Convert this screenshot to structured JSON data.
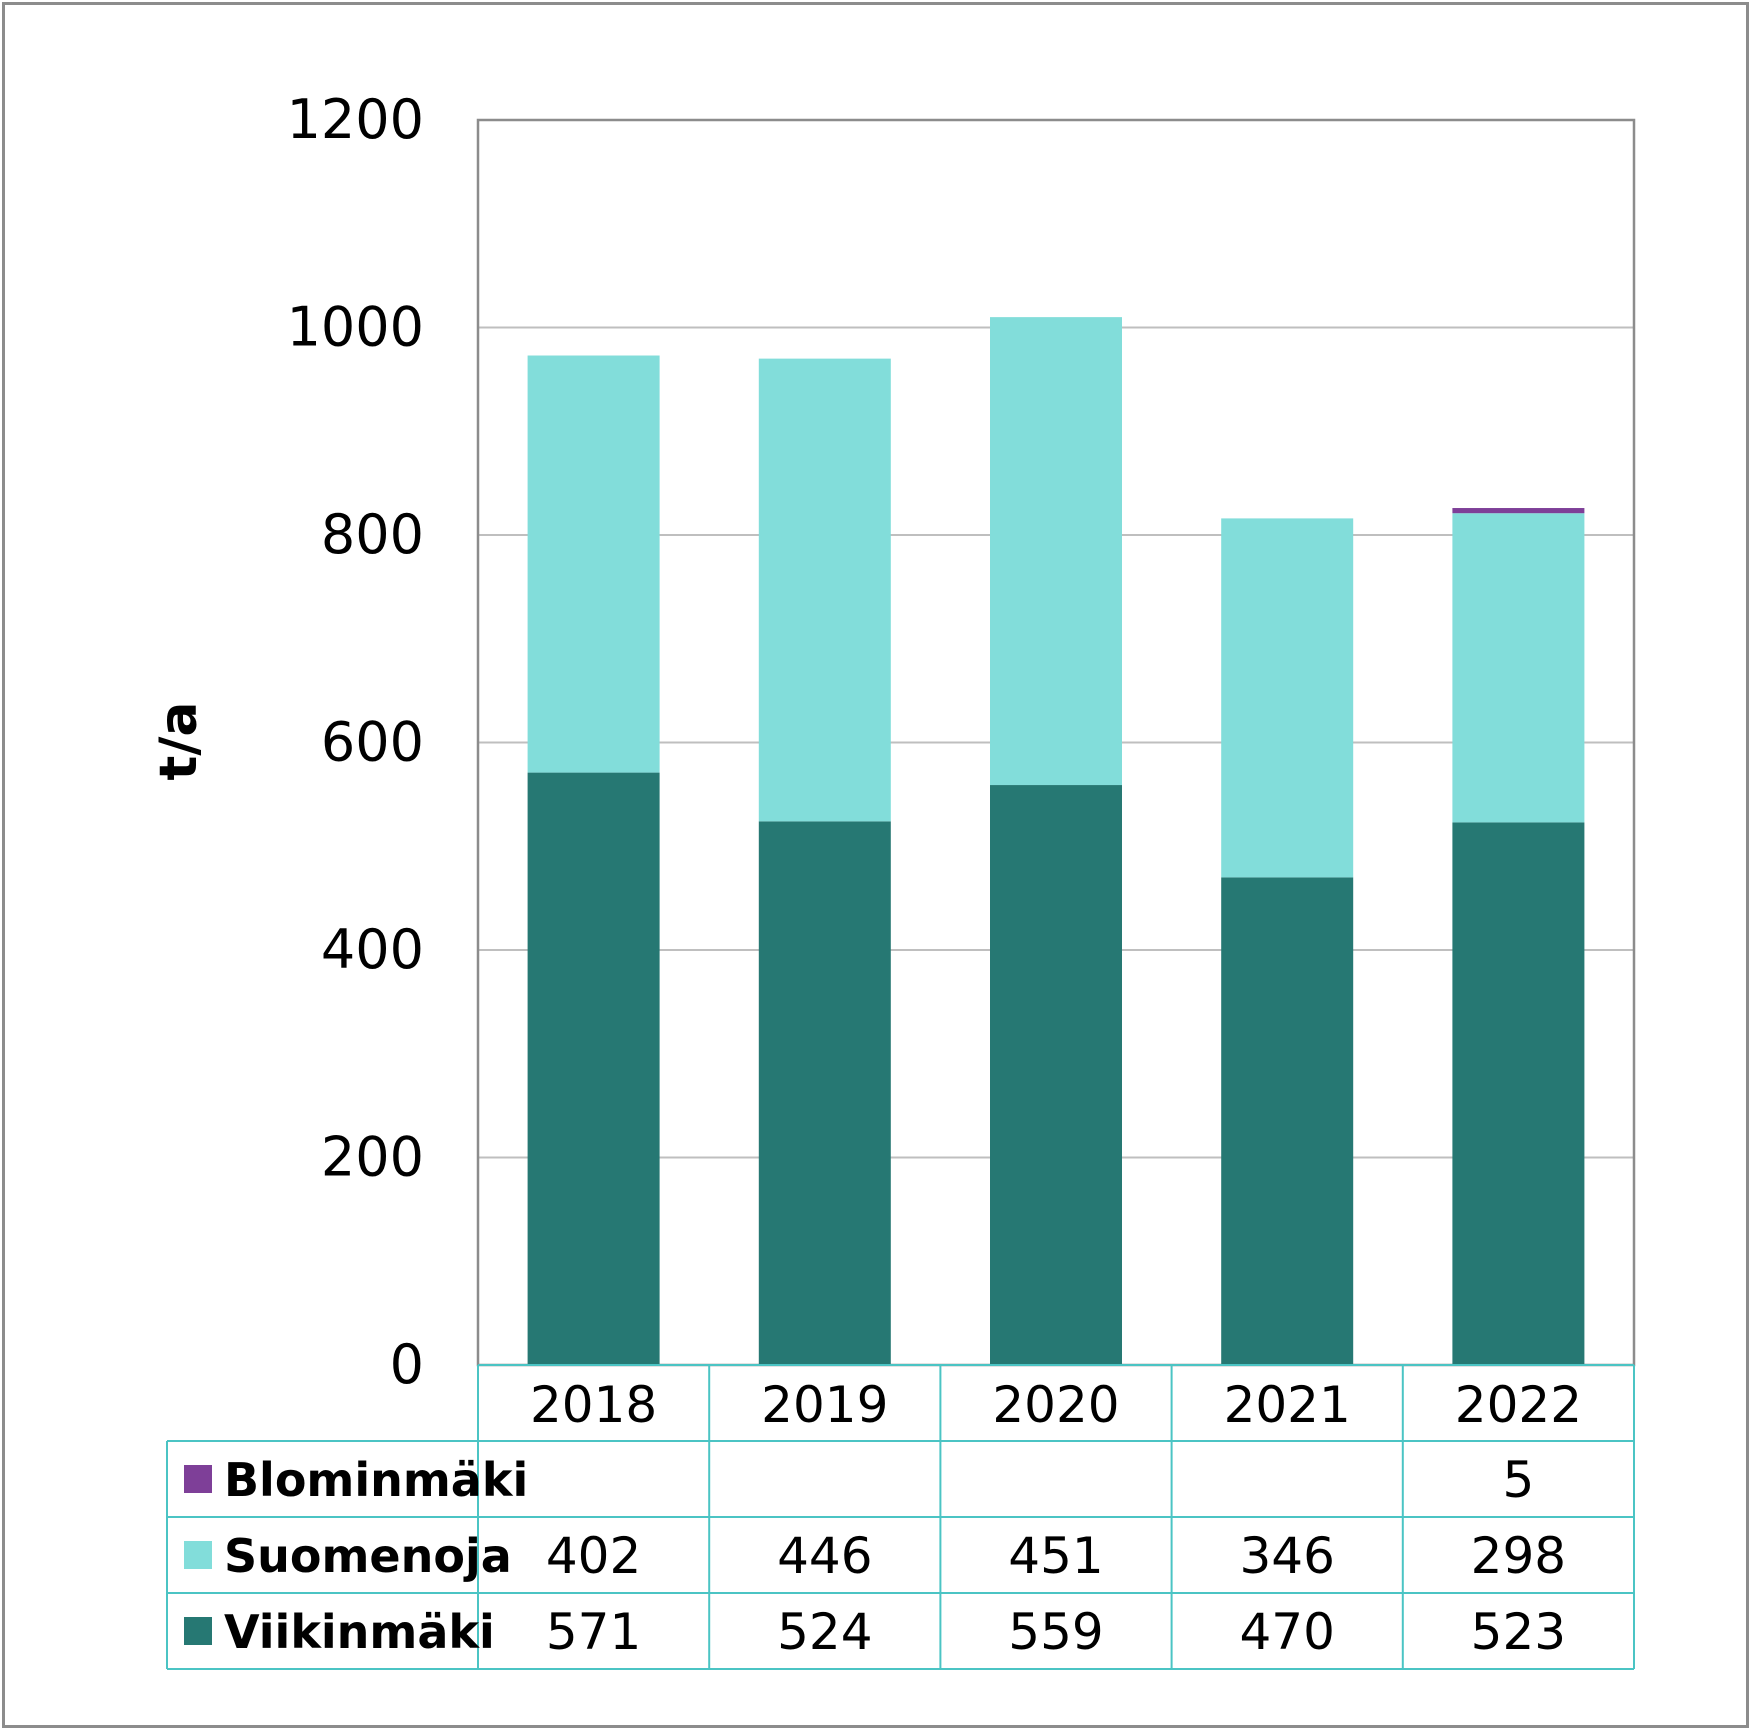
{
  "chart_data": {
    "type": "bar",
    "stacked": true,
    "ylabel": "t/a",
    "ylim": [
      0,
      1200
    ],
    "yticks": [
      0,
      200,
      400,
      600,
      800,
      1000,
      1200
    ],
    "grid": true,
    "legend": "data-table",
    "categories": [
      "2018",
      "2019",
      "2020",
      "2021",
      "2022"
    ],
    "series": [
      {
        "name": "Viikinmäki",
        "color": "#267873",
        "values": [
          571,
          524,
          559,
          470,
          523
        ]
      },
      {
        "name": "Suomenoja",
        "color": "#82DDDA",
        "values": [
          402,
          446,
          451,
          346,
          298
        ]
      },
      {
        "name": "Blominmäki",
        "color": "#7E3F98",
        "values": [
          null,
          null,
          null,
          null,
          5
        ]
      }
    ],
    "table_row_order": [
      "Blominmäki",
      "Suomenoja",
      "Viikinmäki"
    ]
  }
}
